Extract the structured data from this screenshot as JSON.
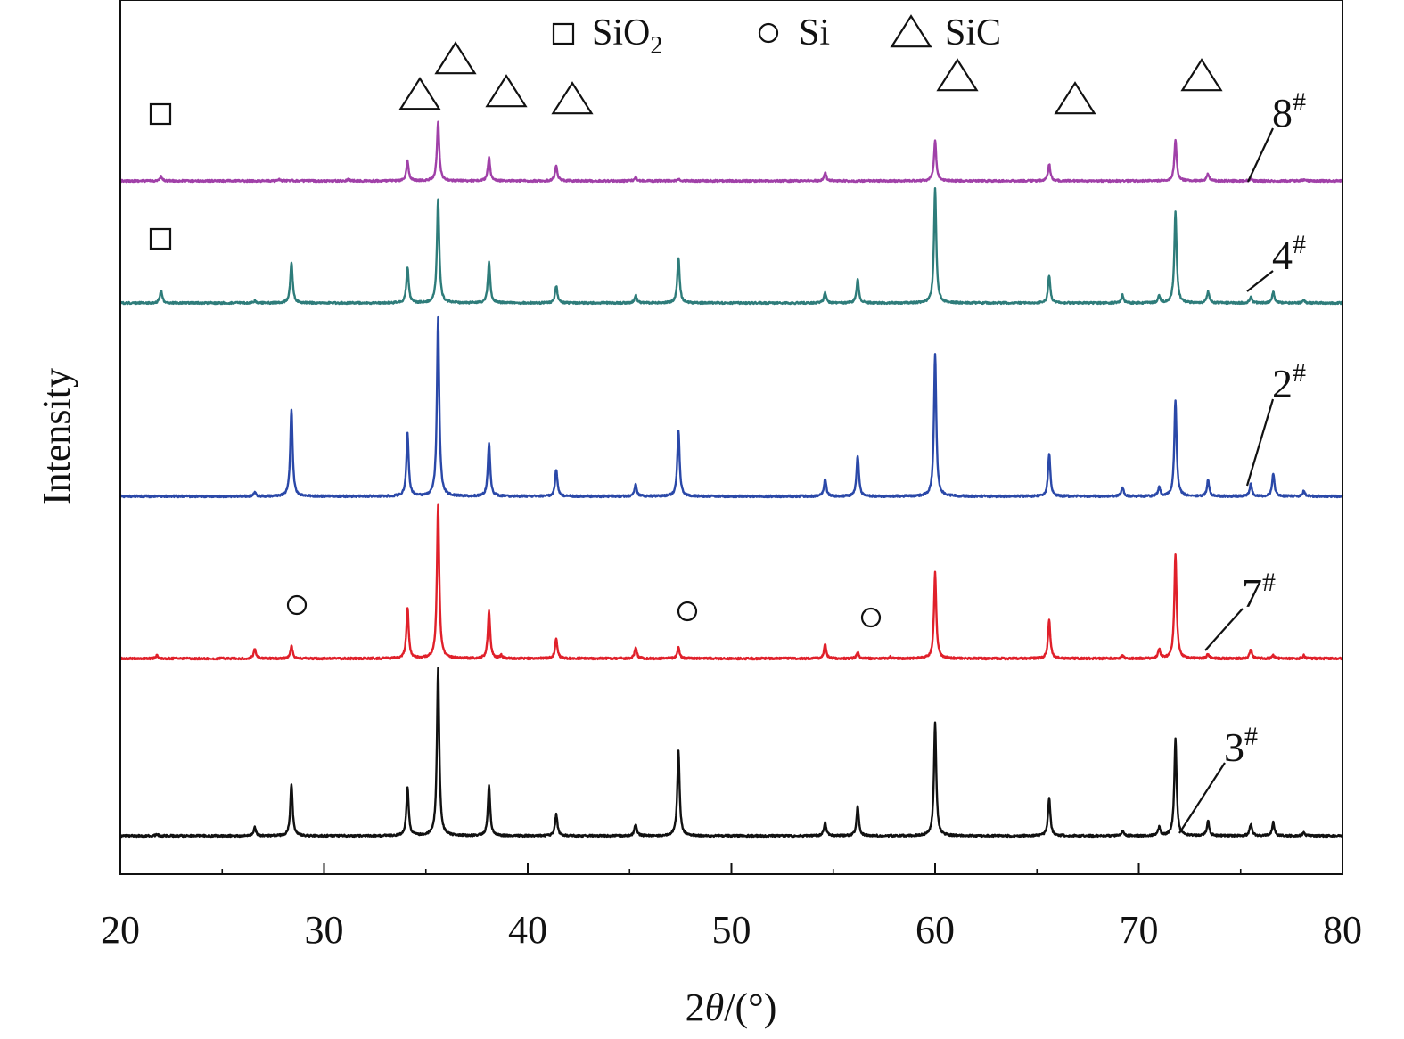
{
  "chart_data": {
    "type": "line",
    "title": "",
    "xlabel_prefix": "2",
    "xlabel_theta": "θ",
    "xlabel_suffix": "/(°)",
    "ylabel": "Intensity",
    "xlim": [
      20,
      80
    ],
    "x_ticks": [
      "20",
      "30",
      "40",
      "50",
      "60",
      "70",
      "80"
    ],
    "y_ticks_labeled": false,
    "legend": {
      "placement": "top-center",
      "entries": [
        {
          "symbol": "square",
          "label": "SiO",
          "sub": "2"
        },
        {
          "symbol": "circle",
          "label": "Si",
          "sub": ""
        },
        {
          "symbol": "triangle",
          "label": "SiC",
          "sub": ""
        }
      ]
    },
    "series": [
      {
        "name": "8",
        "sup": "#",
        "color": "#a040a8",
        "peaks": [
          [
            22.0,
            0.07
          ],
          [
            27.8,
            0.02
          ],
          [
            28.4,
            0.02
          ],
          [
            31.2,
            0.03
          ],
          [
            34.1,
            0.33
          ],
          [
            35.6,
            1.0
          ],
          [
            38.1,
            0.4
          ],
          [
            41.4,
            0.27
          ],
          [
            45.3,
            0.06
          ],
          [
            47.4,
            0.03
          ],
          [
            54.6,
            0.14
          ],
          [
            60.0,
            0.69
          ],
          [
            65.6,
            0.29
          ],
          [
            71.8,
            0.69
          ],
          [
            73.4,
            0.12
          ],
          [
            75.5,
            0.03
          ],
          [
            78.1,
            0.02
          ]
        ]
      },
      {
        "name": "4",
        "sup": "#",
        "color": "#2e7c7a",
        "peaks": [
          [
            22.0,
            0.11
          ],
          [
            26.6,
            0.02
          ],
          [
            28.4,
            0.36
          ],
          [
            34.1,
            0.31
          ],
          [
            35.6,
            0.91
          ],
          [
            38.1,
            0.36
          ],
          [
            41.4,
            0.15
          ],
          [
            45.3,
            0.07
          ],
          [
            47.4,
            0.4
          ],
          [
            54.6,
            0.09
          ],
          [
            56.2,
            0.21
          ],
          [
            60.0,
            1.0
          ],
          [
            65.6,
            0.24
          ],
          [
            69.2,
            0.07
          ],
          [
            71.0,
            0.06
          ],
          [
            71.8,
            0.8
          ],
          [
            73.4,
            0.1
          ],
          [
            75.5,
            0.05
          ],
          [
            76.6,
            0.1
          ],
          [
            78.1,
            0.02
          ]
        ]
      },
      {
        "name": "2",
        "sup": "#",
        "color": "#2a48a8",
        "peaks": [
          [
            26.6,
            0.02
          ],
          [
            28.4,
            0.49
          ],
          [
            34.1,
            0.35
          ],
          [
            35.6,
            1.0
          ],
          [
            38.1,
            0.3
          ],
          [
            41.4,
            0.15
          ],
          [
            45.3,
            0.07
          ],
          [
            47.4,
            0.37
          ],
          [
            54.6,
            0.1
          ],
          [
            56.2,
            0.23
          ],
          [
            60.0,
            0.8
          ],
          [
            65.6,
            0.24
          ],
          [
            69.2,
            0.05
          ],
          [
            71.0,
            0.05
          ],
          [
            71.8,
            0.54
          ],
          [
            73.4,
            0.09
          ],
          [
            75.5,
            0.07
          ],
          [
            76.6,
            0.13
          ],
          [
            78.1,
            0.03
          ]
        ]
      },
      {
        "name": "7",
        "sup": "#",
        "color": "#e0202a",
        "peaks": [
          [
            21.8,
            0.02
          ],
          [
            26.6,
            0.06
          ],
          [
            28.4,
            0.08
          ],
          [
            34.1,
            0.33
          ],
          [
            35.6,
            1.0
          ],
          [
            38.1,
            0.31
          ],
          [
            38.7,
            0.02
          ],
          [
            41.4,
            0.13
          ],
          [
            45.3,
            0.07
          ],
          [
            47.4,
            0.07
          ],
          [
            54.6,
            0.09
          ],
          [
            56.2,
            0.04
          ],
          [
            57.8,
            0.01
          ],
          [
            60.0,
            0.56
          ],
          [
            65.6,
            0.25
          ],
          [
            69.2,
            0.02
          ],
          [
            71.0,
            0.06
          ],
          [
            71.8,
            0.68
          ],
          [
            73.4,
            0.03
          ],
          [
            75.5,
            0.06
          ],
          [
            76.6,
            0.02
          ],
          [
            78.1,
            0.02
          ]
        ]
      },
      {
        "name": "3",
        "sup": "#",
        "color": "#111111",
        "peaks": [
          [
            21.8,
            0.01
          ],
          [
            26.6,
            0.05
          ],
          [
            28.4,
            0.31
          ],
          [
            34.1,
            0.29
          ],
          [
            35.6,
            1.0
          ],
          [
            38.1,
            0.3
          ],
          [
            41.4,
            0.13
          ],
          [
            45.3,
            0.07
          ],
          [
            47.4,
            0.51
          ],
          [
            54.6,
            0.08
          ],
          [
            56.2,
            0.18
          ],
          [
            60.0,
            0.68
          ],
          [
            65.6,
            0.23
          ],
          [
            69.2,
            0.03
          ],
          [
            71.0,
            0.05
          ],
          [
            71.8,
            0.58
          ],
          [
            73.4,
            0.09
          ],
          [
            75.5,
            0.07
          ],
          [
            76.6,
            0.08
          ],
          [
            78.1,
            0.02
          ]
        ]
      }
    ],
    "phase_markers": [
      {
        "symbol": "square",
        "two_theta": 22.0,
        "series": "8"
      },
      {
        "symbol": "square",
        "two_theta": 22.0,
        "series": "4"
      },
      {
        "symbol": "triangle",
        "two_theta": 34.1,
        "series": "8"
      },
      {
        "symbol": "triangle",
        "two_theta": 35.6,
        "series": "8"
      },
      {
        "symbol": "triangle",
        "two_theta": 38.1,
        "series": "8"
      },
      {
        "symbol": "triangle",
        "two_theta": 41.4,
        "series": "8"
      },
      {
        "symbol": "triangle",
        "two_theta": 60.0,
        "series": "8"
      },
      {
        "symbol": "triangle",
        "two_theta": 65.6,
        "series": "8"
      },
      {
        "symbol": "triangle",
        "two_theta": 71.8,
        "series": "8"
      },
      {
        "symbol": "circle",
        "two_theta": 28.4,
        "series": "7"
      },
      {
        "symbol": "circle",
        "two_theta": 47.4,
        "series": "7"
      },
      {
        "symbol": "circle",
        "two_theta": 56.2,
        "series": "7"
      }
    ],
    "grid": false
  }
}
